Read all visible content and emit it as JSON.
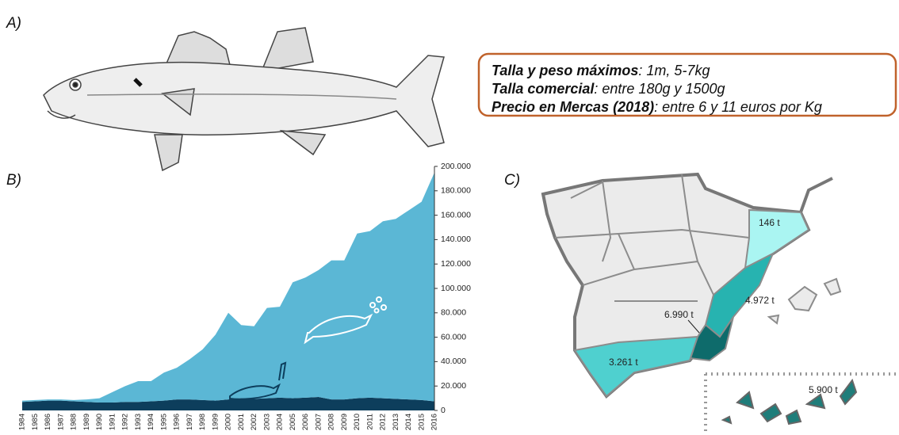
{
  "panels": [
    "A)",
    "B)",
    "C)"
  ],
  "info_box": [
    {
      "label": "Talla y peso máximos",
      "text": ": 1m, 5-7kg"
    },
    {
      "label": "Talla comercial",
      "text": ": entre 180g y 1500g"
    },
    {
      "label": "Precio en Mercas (2018)",
      "text": ": entre 6 y 11 euros por Kg"
    }
  ],
  "chart_data": {
    "type": "area",
    "stacked": true,
    "categories": [
      "1984",
      "1985",
      "1986",
      "1987",
      "1988",
      "1989",
      "1990",
      "1991",
      "1992",
      "1993",
      "1994",
      "1995",
      "1996",
      "1997",
      "1998",
      "1999",
      "2000",
      "2001",
      "2002",
      "2003",
      "2004",
      "2005",
      "2006",
      "2007",
      "2008",
      "2009",
      "2010",
      "2011",
      "2012",
      "2013",
      "2014",
      "2015",
      "2016"
    ],
    "series": [
      {
        "color": "#0d3e5c",
        "values": [
          7000,
          7500,
          8000,
          8000,
          7500,
          7000,
          6500,
          6500,
          7000,
          7000,
          7500,
          8000,
          9000,
          9000,
          8500,
          8000,
          9000,
          10000,
          9500,
          10000,
          10500,
          10000,
          10500,
          11000,
          9000,
          9000,
          10000,
          10500,
          10000,
          9500,
          9000,
          8500,
          7500
        ]
      },
      {
        "color": "#5bb7d5",
        "values": [
          1000,
          1000,
          1000,
          1000,
          1000,
          2000,
          3500,
          8500,
          13000,
          17000,
          16500,
          23000,
          26000,
          33000,
          41500,
          54000,
          71000,
          60000,
          59500,
          74000,
          74500,
          95000,
          98500,
          104000,
          114000,
          114000,
          135000,
          136500,
          145000,
          147500,
          155000,
          162500,
          187500
        ]
      }
    ],
    "ylim": [
      0,
      200000
    ],
    "yticks": [
      0,
      {
        "value": 20000,
        "label": "20.000"
      },
      {
        "value": 40000,
        "label": "40.000"
      },
      {
        "value": 60000,
        "label": "60.000"
      },
      {
        "value": 80000,
        "label": "80.000"
      },
      {
        "value": 100000,
        "label": "100.000"
      },
      {
        "value": 120000,
        "label": "120.000"
      },
      {
        "value": 140000,
        "label": "140.000"
      },
      {
        "value": 160000,
        "label": "160.000"
      },
      {
        "value": 180000,
        "label": "180.000"
      },
      {
        "value": 200000,
        "label": "200.000"
      }
    ],
    "y_axis_side": "right"
  },
  "map": {
    "labels": [
      "146 t",
      "4.972 t",
      "6.990 t",
      "3.261 t",
      "5.900 t"
    ]
  }
}
